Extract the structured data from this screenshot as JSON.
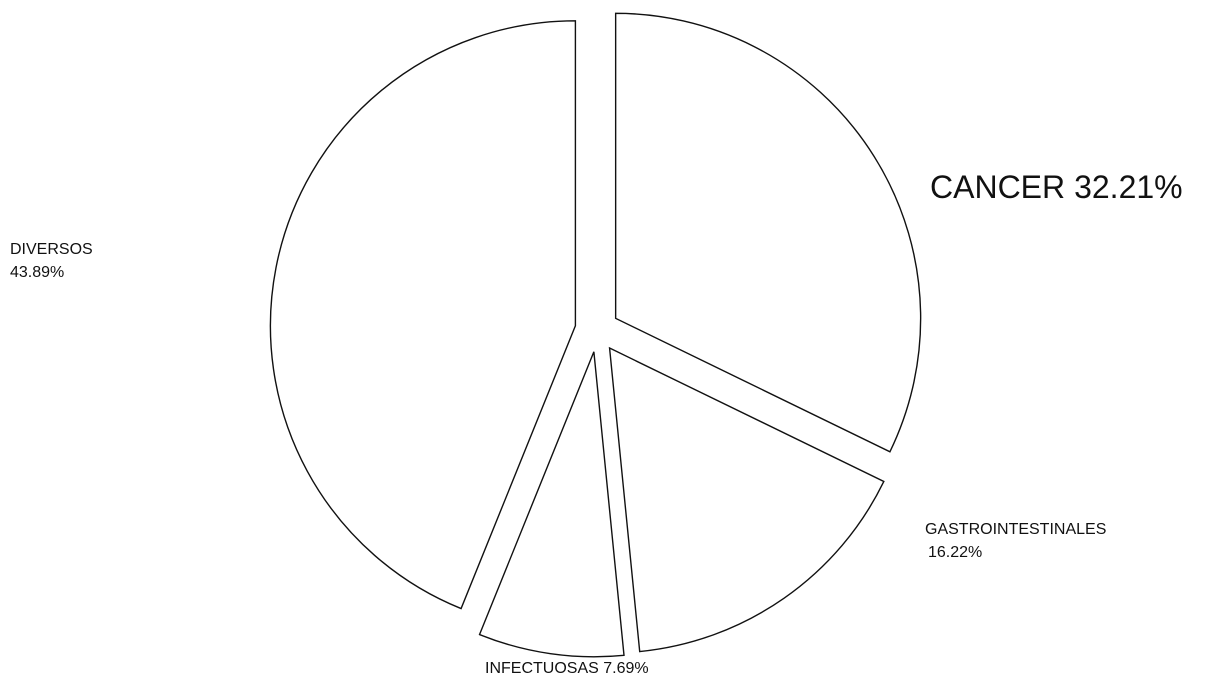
{
  "chart_data": {
    "type": "pie",
    "categories": [
      "CANCER",
      "GASTROINTESTINALES",
      "INFECTUOSAS",
      "DIVERSOS"
    ],
    "values": [
      32.21,
      16.22,
      7.69,
      43.89
    ],
    "value_labels": [
      "32.21%",
      "16.22%",
      "7.69%",
      "43.89%"
    ],
    "color": "#ffffff"
  }
}
